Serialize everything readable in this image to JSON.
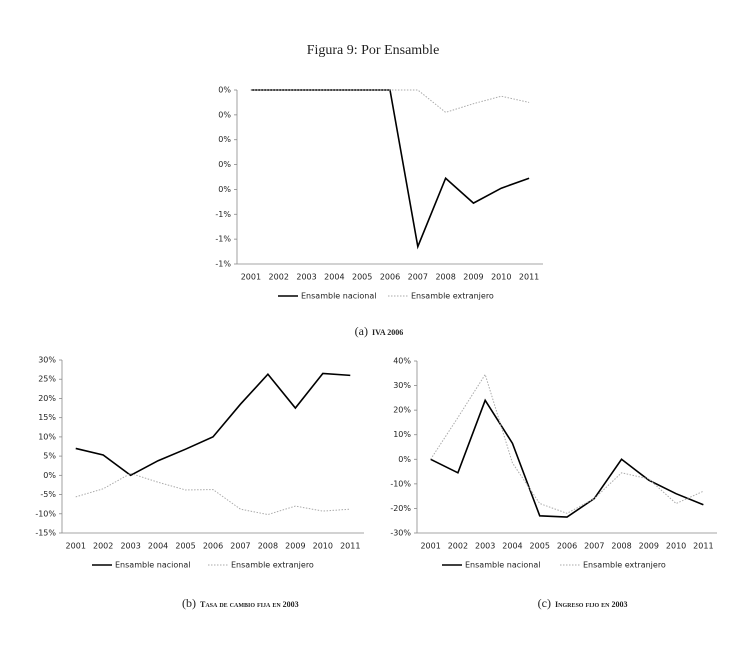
{
  "title": "Figura 9: Por Ensamble",
  "chart_data": [
    {
      "type": "line",
      "caption_label": "(a)",
      "caption": "IVA 2006",
      "categories": [
        "2001",
        "2002",
        "2003",
        "2004",
        "2005",
        "2006",
        "2007",
        "2008",
        "2009",
        "2010",
        "2011"
      ],
      "ylim": [
        -1.0,
        0.4
      ],
      "yticks": [
        {
          "value": 0.4,
          "label": "0%"
        },
        {
          "value": 0.2,
          "label": "0%"
        },
        {
          "value": 0.0,
          "label": "0%"
        },
        {
          "value": -0.2,
          "label": "0%"
        },
        {
          "value": -0.4,
          "label": "0%"
        },
        {
          "value": -0.6,
          "label": "-1%"
        },
        {
          "value": -0.8,
          "label": "-1%"
        },
        {
          "value": -1.0,
          "label": "-1%"
        }
      ],
      "series": [
        {
          "name": "Ensamble nacional",
          "color": "#000000",
          "line_style": "solid",
          "values": [
            0.4,
            0.4,
            0.4,
            0.4,
            0.4,
            0.4,
            -0.86,
            -0.31,
            -0.51,
            -0.39,
            -0.31
          ]
        },
        {
          "name": "Ensamble extranjero",
          "color": "#aaaaaa",
          "line_style": "dotted",
          "values": [
            0.4,
            0.4,
            0.4,
            0.4,
            0.4,
            0.4,
            0.4,
            0.22,
            0.29,
            0.35,
            0.3
          ]
        }
      ]
    },
    {
      "type": "line",
      "caption_label": "(b)",
      "caption": "Tasa de cambio fija en 2003",
      "categories": [
        "2001",
        "2002",
        "2003",
        "2004",
        "2005",
        "2006",
        "2007",
        "2008",
        "2009",
        "2010",
        "2011"
      ],
      "ylim": [
        -15,
        30
      ],
      "yticks": [
        {
          "value": 30,
          "label": "30%"
        },
        {
          "value": 25,
          "label": "25%"
        },
        {
          "value": 20,
          "label": "20%"
        },
        {
          "value": 15,
          "label": "15%"
        },
        {
          "value": 10,
          "label": "10%"
        },
        {
          "value": 5,
          "label": "5%"
        },
        {
          "value": 0,
          "label": "0%"
        },
        {
          "value": -5,
          "label": "-5%"
        },
        {
          "value": -10,
          "label": "-10%"
        },
        {
          "value": -15,
          "label": "-15%"
        }
      ],
      "series": [
        {
          "name": "Ensamble nacional",
          "color": "#000000",
          "line_style": "solid",
          "values": [
            7,
            5.3,
            0,
            3.8,
            6.8,
            10,
            18.5,
            26.3,
            17.5,
            26.5,
            26
          ]
        },
        {
          "name": "Ensamble extranjero",
          "color": "#aaaaaa",
          "line_style": "dotted",
          "values": [
            -5.6,
            -3.5,
            0.5,
            -1.8,
            -3.8,
            -3.7,
            -8.8,
            -10.2,
            -8,
            -9.3,
            -8.8
          ]
        }
      ]
    },
    {
      "type": "line",
      "caption_label": "(c)",
      "caption": "Ingreso fijo en 2003",
      "categories": [
        "2001",
        "2002",
        "2003",
        "2004",
        "2005",
        "2006",
        "2007",
        "2008",
        "2009",
        "2010",
        "2011"
      ],
      "ylim": [
        -30,
        40
      ],
      "yticks": [
        {
          "value": 40,
          "label": "40%"
        },
        {
          "value": 30,
          "label": "30%"
        },
        {
          "value": 20,
          "label": "20%"
        },
        {
          "value": 10,
          "label": "10%"
        },
        {
          "value": 0,
          "label": "0%"
        },
        {
          "value": -10,
          "label": "-10%"
        },
        {
          "value": -20,
          "label": "-20%"
        },
        {
          "value": -30,
          "label": "-30%"
        }
      ],
      "series": [
        {
          "name": "Ensamble nacional",
          "color": "#000000",
          "line_style": "solid",
          "values": [
            0,
            -5.5,
            24,
            6.5,
            -23,
            -23.5,
            -16,
            0,
            -8.5,
            -14,
            -18.5
          ]
        },
        {
          "name": "Ensamble extranjero",
          "color": "#aaaaaa",
          "line_style": "dotted",
          "values": [
            0,
            17,
            34.5,
            -1.5,
            -18,
            -22,
            -16,
            -5.5,
            -8,
            -18,
            -13
          ]
        }
      ]
    }
  ]
}
